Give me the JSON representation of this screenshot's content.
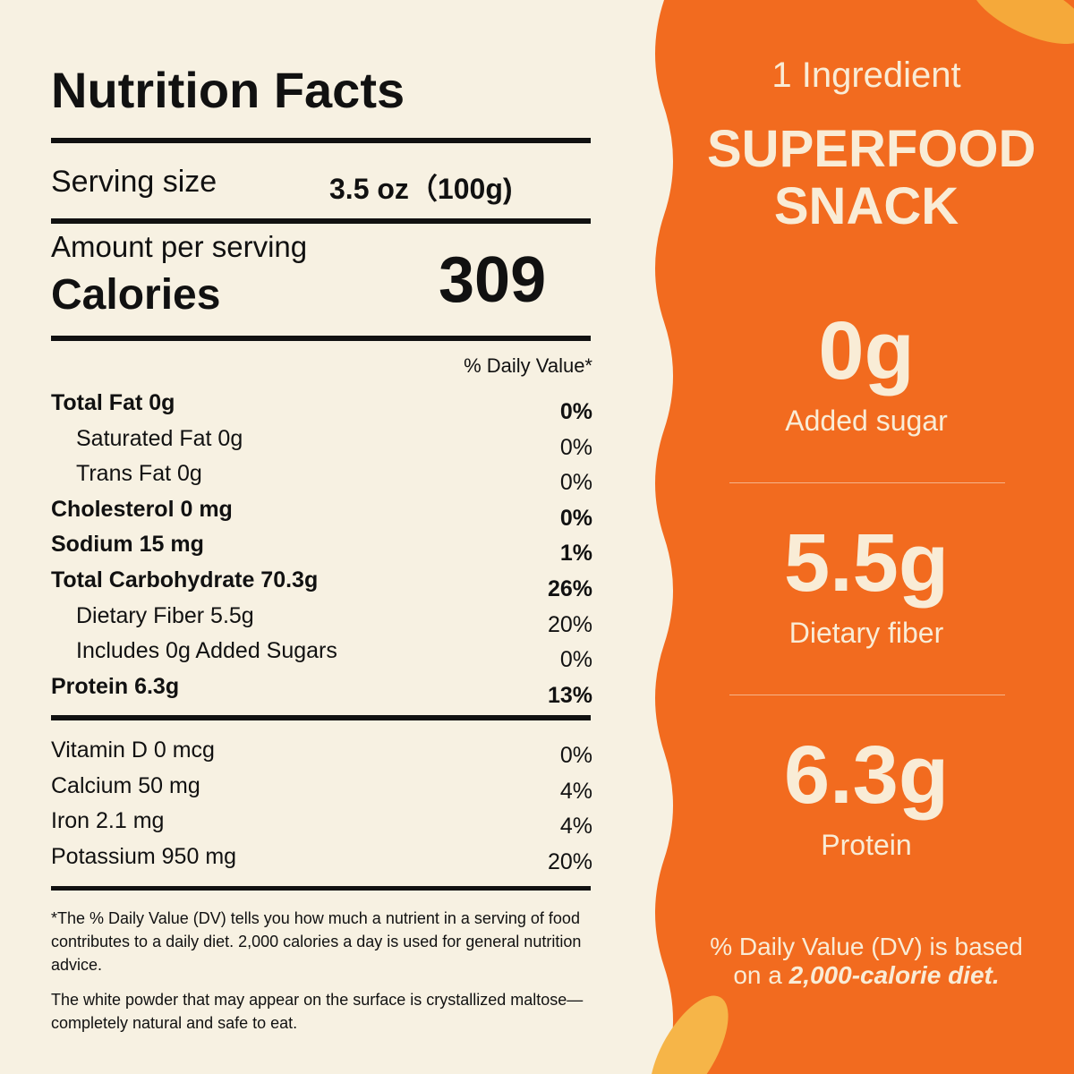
{
  "label": {
    "title": "Nutrition Facts",
    "serving_size_label": "Serving size",
    "serving_size_value": "3.5 oz（100g)",
    "amount_per_serving": "Amount per serving",
    "calories_label": "Calories",
    "calories": "309",
    "dv_header": "% Daily Value*",
    "nutrients": [
      {
        "name": "Total Fat 0g",
        "dv": "0%",
        "bold": true,
        "indent": false
      },
      {
        "name": "Saturated Fat 0g",
        "dv": "0%",
        "bold": false,
        "indent": true
      },
      {
        "name": "Trans Fat 0g",
        "dv": "0%",
        "bold": false,
        "indent": true
      },
      {
        "name": "Cholesterol 0 mg",
        "dv": "0%",
        "bold": true,
        "indent": false
      },
      {
        "name": "Sodium 15 mg",
        "dv": "1%",
        "bold": true,
        "indent": false
      },
      {
        "name": "Total Carbohydrate 70.3g",
        "dv": "26%",
        "bold": true,
        "indent": false
      },
      {
        "name": "Dietary Fiber 5.5g",
        "dv": "20%",
        "bold": false,
        "indent": true
      },
      {
        "name": "Includes 0g Added Sugars",
        "dv": "0%",
        "bold": false,
        "indent": true
      },
      {
        "name": "Protein 6.3g",
        "dv": "13%",
        "bold": true,
        "indent": false
      }
    ],
    "vitamins": [
      {
        "name": "Vitamin D 0 mcg",
        "dv": "0%"
      },
      {
        "name": "Calcium 50 mg",
        "dv": "4%"
      },
      {
        "name": "Iron 2.1 mg",
        "dv": "4%"
      },
      {
        "name": "Potassium 950 mg",
        "dv": "20%"
      }
    ],
    "footnote": "*The % Daily Value (DV) tells you how much a nutrient in a serving of food contributes to a daily diet. 2,000 calories a day is used for general nutrition advice.",
    "note": "The white powder that may appear on the surface is crystallized maltose— completely natural and safe to eat."
  },
  "panel": {
    "ingredient": "1 Ingredient",
    "headline": "SUPERFOOD SNACK",
    "stats": [
      {
        "value": "0g",
        "label": "Added sugar"
      },
      {
        "value": "5.5g",
        "label": "Dietary fiber"
      },
      {
        "value": "6.3g",
        "label": "Protein"
      }
    ],
    "dv_note": {
      "text": "% Daily Value (DV) is based on a ",
      "emphasis": "2,000-calorie diet."
    }
  }
}
